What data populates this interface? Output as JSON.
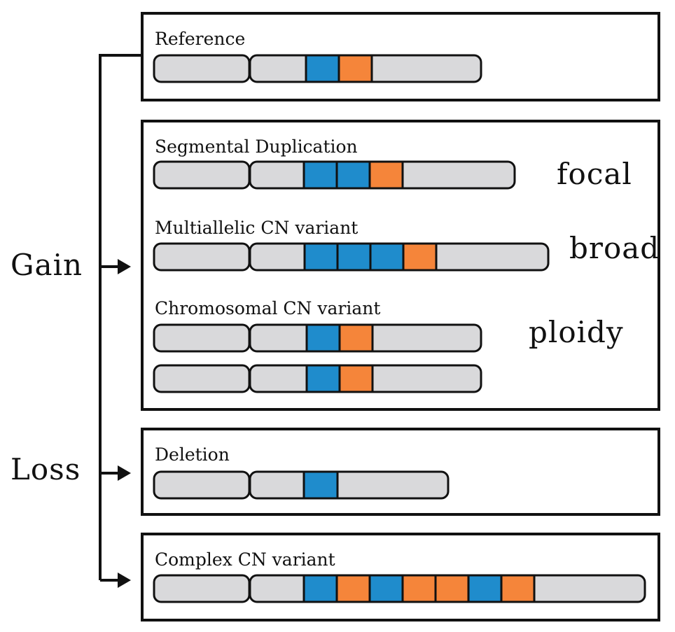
{
  "side_labels": {
    "gain": "Gain",
    "loss": "Loss"
  },
  "panels": {
    "reference": {
      "title": "Reference"
    },
    "gain": {
      "segmental": {
        "title": "Segmental Duplication",
        "scale": "focal"
      },
      "multiallelic": {
        "title": "Multiallelic CN variant",
        "scale": "broad"
      },
      "chromosomal": {
        "title": "Chromosomal CN variant",
        "scale": "ploidy"
      }
    },
    "deletion": {
      "title": "Deletion"
    },
    "complex": {
      "title": "Complex CN variant"
    }
  },
  "colors": {
    "blue_segment": "#1f8ccc",
    "orange_segment": "#f5853a",
    "chromosome_fill": "#d9d9db",
    "outline": "#111111"
  }
}
